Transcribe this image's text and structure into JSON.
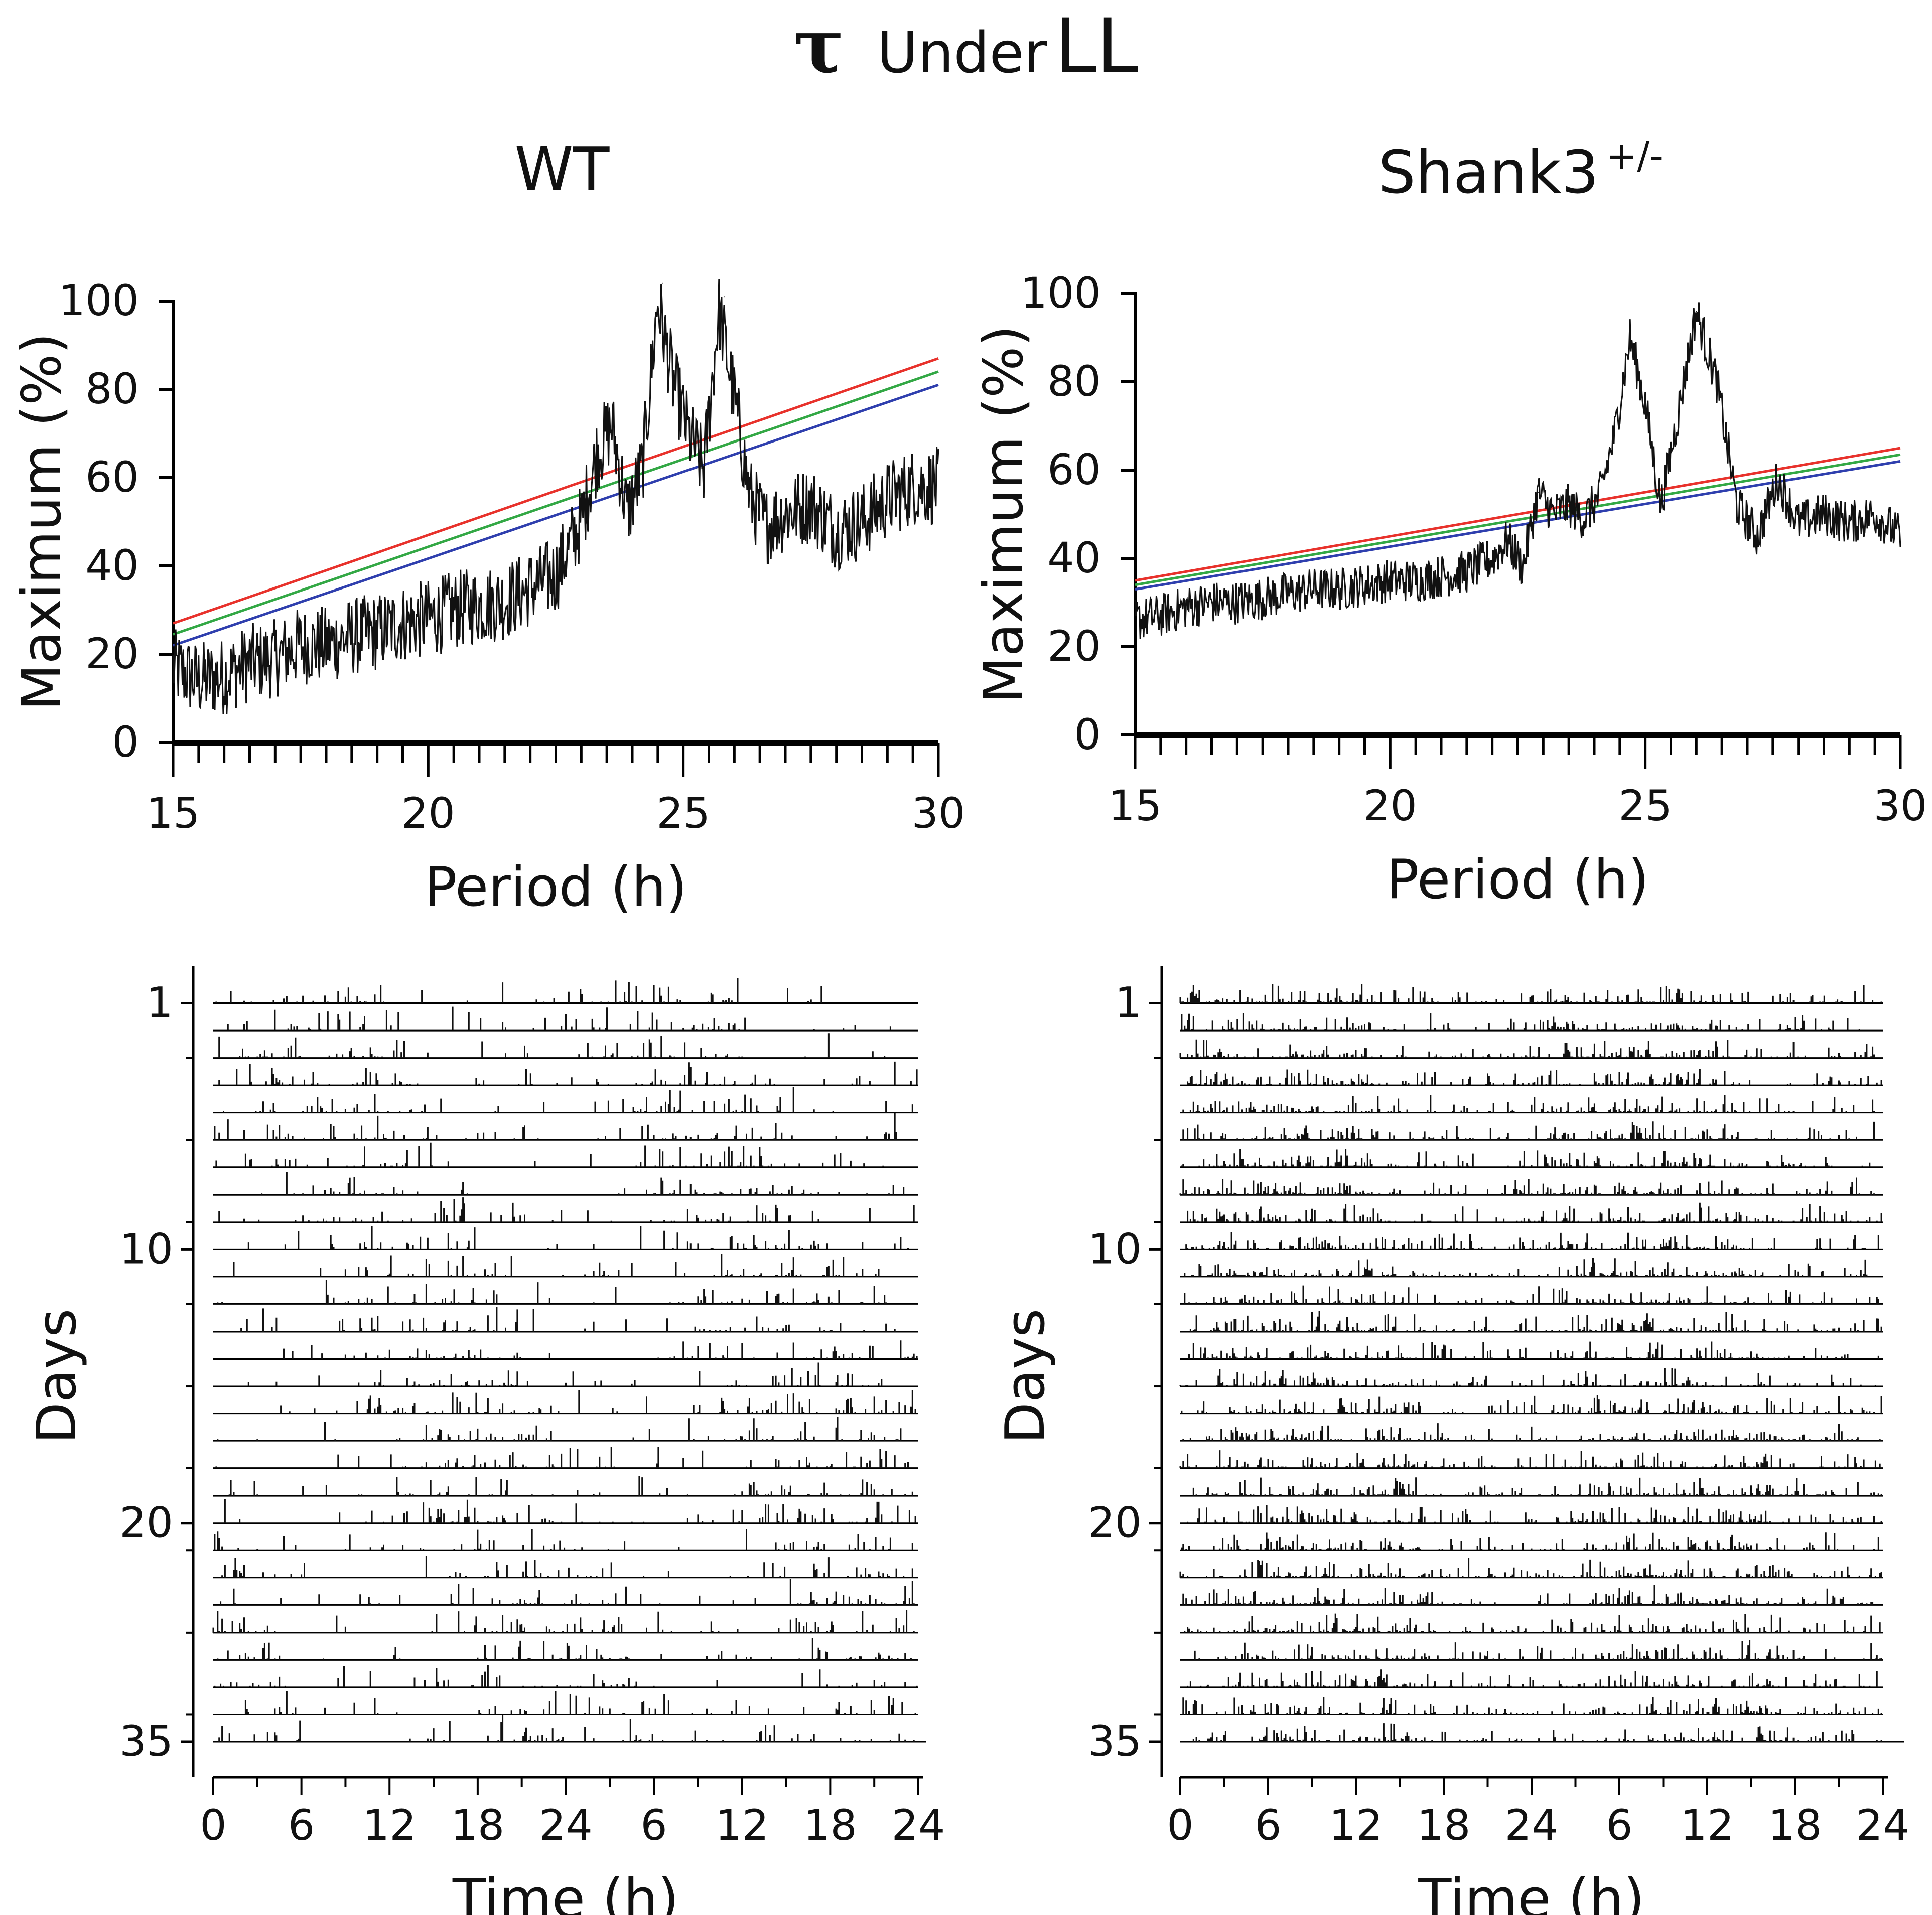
{
  "figure": {
    "title_symbol": "τ",
    "title_under": "Under",
    "title_condition": "LL",
    "panels": [
      {
        "title": "WT",
        "title_sup": ""
      },
      {
        "title": "Shank3",
        "title_sup": "+/-"
      }
    ]
  },
  "chart_data": [
    {
      "type": "line",
      "panel": "WT periodogram",
      "xlabel": "Period (h)",
      "ylabel": "Maximum (%)",
      "xlim": [
        15,
        30
      ],
      "ylim": [
        0,
        100
      ],
      "xticks": [
        15,
        20,
        25,
        30
      ],
      "yticks": [
        0,
        20,
        40,
        60,
        80,
        100
      ],
      "significance_lines": [
        {
          "name": "red",
          "color": "#e8322c",
          "from": [
            15,
            27
          ],
          "to": [
            30,
            87
          ]
        },
        {
          "name": "green",
          "color": "#33a845",
          "from": [
            15,
            24.5
          ],
          "to": [
            30,
            84
          ]
        },
        {
          "name": "blue",
          "color": "#2f3fae",
          "from": [
            15,
            22
          ],
          "to": [
            30,
            81
          ]
        }
      ],
      "peaks": [
        {
          "period": 23.5,
          "value": 74
        },
        {
          "period": 24.6,
          "value": 104
        },
        {
          "period": 25.8,
          "value": 101
        }
      ],
      "x": [
        15,
        15.5,
        16,
        16.5,
        17,
        17.5,
        18,
        18.5,
        19,
        19.5,
        20,
        20.5,
        21,
        21.5,
        22,
        22.5,
        23,
        23.3,
        23.6,
        23.9,
        24.2,
        24.5,
        24.8,
        25.1,
        25.4,
        25.7,
        26,
        26.3,
        26.6,
        27,
        27.5,
        28,
        28.5,
        29,
        29.5,
        30
      ],
      "y": [
        17,
        14,
        15,
        18,
        19,
        22,
        22,
        24,
        25,
        27,
        28,
        30,
        31,
        32,
        35,
        38,
        50,
        65,
        72,
        52,
        62,
        100,
        82,
        70,
        62,
        98,
        78,
        56,
        49,
        52,
        54,
        48,
        50,
        55,
        58,
        58
      ]
    },
    {
      "type": "line",
      "panel": "Shank3 +/- periodogram",
      "xlabel": "Period (h)",
      "ylabel": "Maximum (%)",
      "xlim": [
        15,
        30
      ],
      "ylim": [
        0,
        100
      ],
      "xticks": [
        15,
        20,
        25,
        30
      ],
      "yticks": [
        0,
        20,
        40,
        60,
        80,
        100
      ],
      "significance_lines": [
        {
          "name": "red",
          "color": "#e8322c",
          "from": [
            15,
            35
          ],
          "to": [
            30,
            65
          ]
        },
        {
          "name": "green",
          "color": "#33a845",
          "from": [
            15,
            34
          ],
          "to": [
            30,
            63.5
          ]
        },
        {
          "name": "blue",
          "color": "#2f3fae",
          "from": [
            15,
            33
          ],
          "to": [
            30,
            62
          ]
        }
      ],
      "peaks": [
        {
          "period": 22.9,
          "value": 55
        },
        {
          "period": 24.7,
          "value": 90
        },
        {
          "period": 26.0,
          "value": 96
        }
      ],
      "x": [
        15,
        15.5,
        16,
        16.5,
        17,
        17.5,
        18,
        18.5,
        19,
        19.5,
        20,
        20.5,
        21,
        21.5,
        22,
        22.3,
        22.6,
        22.9,
        23.2,
        23.5,
        23.8,
        24.1,
        24.4,
        24.7,
        25,
        25.3,
        25.6,
        26,
        26.4,
        26.8,
        27.2,
        27.6,
        28,
        28.5,
        29,
        29.5,
        30
      ],
      "y": [
        26,
        27,
        29,
        30,
        30,
        31,
        32,
        33,
        33,
        34,
        35,
        35,
        36,
        37,
        40,
        44,
        38,
        55,
        50,
        52,
        49,
        54,
        68,
        90,
        75,
        52,
        70,
        96,
        80,
        52,
        45,
        58,
        48,
        50,
        48,
        50,
        45
      ]
    },
    {
      "type": "actogram",
      "panel": "WT actogram",
      "xlabel": "Time (h)",
      "ylabel": "Days",
      "xticks": [
        "0",
        "6",
        "12",
        "18",
        "24",
        "6",
        "12",
        "18",
        "24"
      ],
      "yticks": [
        "1",
        "10",
        "20",
        "35"
      ],
      "rows": 28,
      "double_plotted_hours": 48,
      "activity_onset_hour_day1": 0,
      "free_running_period_h": 24.6
    },
    {
      "type": "actogram",
      "panel": "Shank3 +/- actogram",
      "xlabel": "Time (h)",
      "ylabel": "Days",
      "xticks": [
        "0",
        "6",
        "12",
        "18",
        "24",
        "6",
        "12",
        "18",
        "24"
      ],
      "yticks": [
        "1",
        "10",
        "20",
        "35"
      ],
      "rows": 28,
      "double_plotted_hours": 48,
      "activity_onset_hour_day1": 0,
      "free_running_period_h": 24.5
    }
  ]
}
